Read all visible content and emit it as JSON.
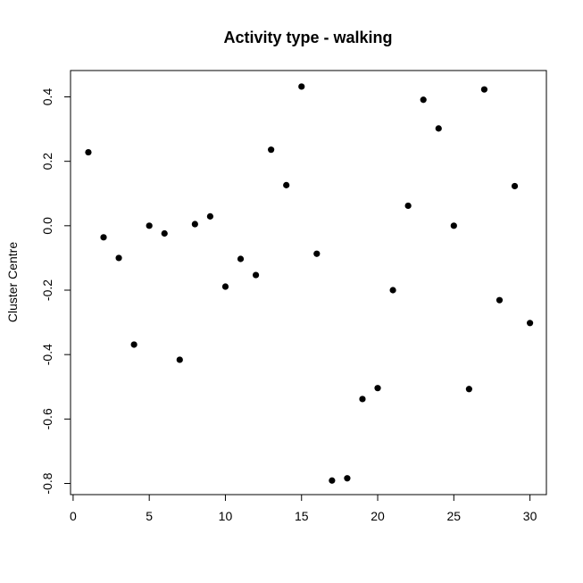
{
  "chart_data": {
    "type": "scatter",
    "title": "Activity type - walking",
    "xlabel": "",
    "ylabel": "Cluster Centre",
    "xlim": [
      0,
      30
    ],
    "ylim": [
      -0.8,
      0.4
    ],
    "xticks": [
      0,
      5,
      10,
      15,
      20,
      25,
      30
    ],
    "xtick_labels": [
      "0",
      "5",
      "10",
      "15",
      "20",
      "25",
      "30"
    ],
    "yticks": [
      -0.8,
      -0.6,
      -0.4,
      -0.2,
      0.0,
      0.2,
      0.4
    ],
    "ytick_labels": [
      "-0.8",
      "-0.6",
      "-0.4",
      "-0.2",
      "0.0",
      "0.2",
      "0.4"
    ],
    "grid": false,
    "marker_color": "#000000",
    "x": [
      1,
      2,
      3,
      4,
      5,
      6,
      7,
      8,
      9,
      10,
      11,
      12,
      13,
      14,
      15,
      16,
      17,
      18,
      19,
      20,
      21,
      22,
      23,
      24,
      25,
      26,
      27,
      28,
      29,
      30
    ],
    "y": [
      0.228,
      -0.036,
      -0.1,
      -0.369,
      0.0,
      -0.024,
      -0.416,
      0.005,
      0.029,
      -0.189,
      -0.103,
      -0.153,
      0.236,
      0.126,
      0.432,
      -0.087,
      -0.791,
      -0.784,
      -0.538,
      -0.504,
      -0.2,
      0.062,
      0.391,
      0.302,
      0.0,
      -0.507,
      0.423,
      -0.231,
      0.123,
      -0.302
    ]
  }
}
